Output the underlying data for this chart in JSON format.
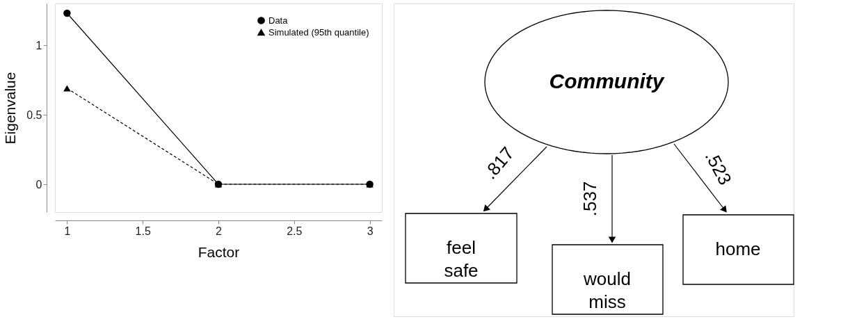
{
  "chart_data": [
    {
      "type": "line",
      "xlabel": "Factor",
      "ylabel": "Eigenvalue",
      "x": [
        1,
        2,
        3
      ],
      "series": [
        {
          "name": "Data",
          "color": "#000000",
          "marker": "circle",
          "line_style": "solid",
          "values": [
            1.23,
            0,
            0
          ]
        },
        {
          "name": "Simulated (95th quantile)",
          "color": "#000000",
          "marker": "triangle",
          "line_style": "dashed",
          "values": [
            0.69,
            0,
            0
          ]
        }
      ],
      "xlim": [
        0.92,
        3.08
      ],
      "xticks": [
        1,
        1.5,
        2,
        2.5,
        3
      ],
      "ylim": [
        -0.2,
        1.3
      ],
      "yticks": [
        0,
        0.5,
        1
      ],
      "grid": false,
      "legend": "top right"
    },
    {
      "type": "other",
      "annotations": [
        "Community",
        ".817",
        ".537",
        ".523",
        "feel safe",
        "would miss",
        "home"
      ]
    }
  ]
}
